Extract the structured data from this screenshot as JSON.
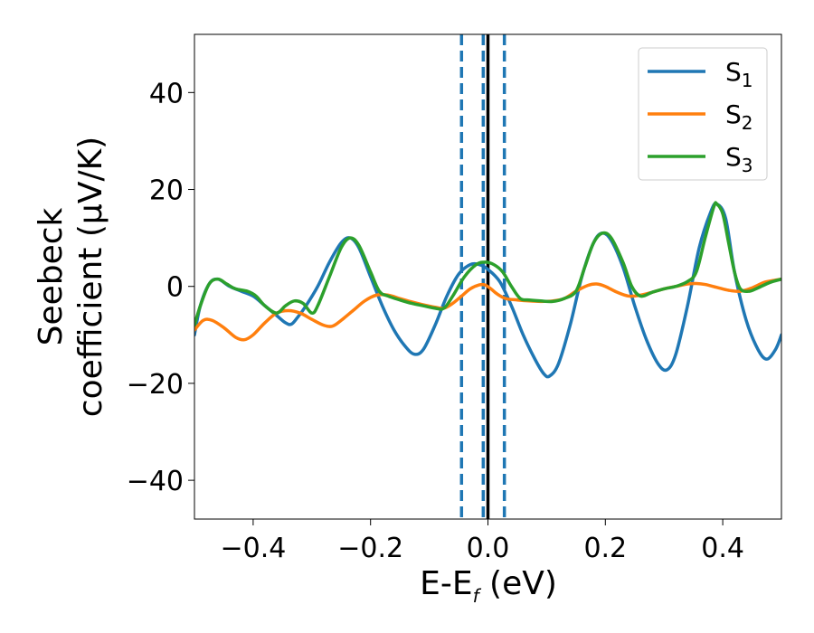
{
  "chart_data": {
    "type": "line",
    "title": "",
    "xlabel": "E-E_f (eV)",
    "xlabel_parts": {
      "main": "E-E",
      "subscript": "f",
      "tail": " (eV)"
    },
    "ylabel_line1": "Seebeck",
    "ylabel_line2": "coefficient  (μV/K)",
    "xlim": [
      -0.5,
      0.5
    ],
    "ylim": [
      -48,
      52
    ],
    "xticks": [
      -0.4,
      -0.2,
      0.0,
      0.2,
      0.4
    ],
    "xtick_labels": [
      "−0.4",
      "−0.2",
      "0.0",
      "0.2",
      "0.4"
    ],
    "yticks": [
      -40,
      -20,
      0,
      20,
      40
    ],
    "ytick_labels": [
      "−40",
      "−20",
      "0",
      "20",
      "40"
    ],
    "grid": false,
    "legend_position": "top-right",
    "vertical_lines": [
      {
        "x": -0.045,
        "style": "dashed",
        "color": "#1f77b4"
      },
      {
        "x": -0.008,
        "style": "dashed",
        "color": "#1f77b4"
      },
      {
        "x": 0.028,
        "style": "dashed",
        "color": "#1f77b4"
      },
      {
        "x": 0.0,
        "style": "solid",
        "color": "#000000"
      }
    ],
    "series": [
      {
        "name": "S",
        "subscript": "1",
        "color": "#1f77b4",
        "points": [
          [
            -0.5,
            -10
          ],
          [
            -0.49,
            -4
          ],
          [
            -0.475,
            0.5
          ],
          [
            -0.46,
            1.5
          ],
          [
            -0.44,
            0
          ],
          [
            -0.42,
            -1
          ],
          [
            -0.4,
            -2
          ],
          [
            -0.38,
            -4
          ],
          [
            -0.36,
            -6
          ],
          [
            -0.345,
            -7.5
          ],
          [
            -0.335,
            -7.8
          ],
          [
            -0.325,
            -6.5
          ],
          [
            -0.31,
            -4
          ],
          [
            -0.29,
            0
          ],
          [
            -0.27,
            5
          ],
          [
            -0.25,
            9
          ],
          [
            -0.235,
            10
          ],
          [
            -0.22,
            8
          ],
          [
            -0.2,
            2
          ],
          [
            -0.18,
            -4
          ],
          [
            -0.16,
            -9
          ],
          [
            -0.14,
            -12.5
          ],
          [
            -0.125,
            -14
          ],
          [
            -0.11,
            -13
          ],
          [
            -0.09,
            -8
          ],
          [
            -0.07,
            -2
          ],
          [
            -0.05,
            2.5
          ],
          [
            -0.03,
            4.5
          ],
          [
            -0.015,
            4.5
          ],
          [
            0.0,
            3.5
          ],
          [
            0.02,
            1
          ],
          [
            0.04,
            -4
          ],
          [
            0.06,
            -10
          ],
          [
            0.08,
            -15
          ],
          [
            0.095,
            -18
          ],
          [
            0.105,
            -18.5
          ],
          [
            0.12,
            -16
          ],
          [
            0.14,
            -8
          ],
          [
            0.16,
            2
          ],
          [
            0.18,
            9
          ],
          [
            0.195,
            11
          ],
          [
            0.21,
            9.5
          ],
          [
            0.23,
            4
          ],
          [
            0.25,
            -4
          ],
          [
            0.27,
            -11
          ],
          [
            0.29,
            -16
          ],
          [
            0.305,
            -17.2
          ],
          [
            0.32,
            -14
          ],
          [
            0.34,
            -4
          ],
          [
            0.36,
            8
          ],
          [
            0.38,
            15.5
          ],
          [
            0.39,
            17
          ],
          [
            0.405,
            14
          ],
          [
            0.42,
            3
          ],
          [
            0.44,
            -7
          ],
          [
            0.46,
            -13
          ],
          [
            0.475,
            -15
          ],
          [
            0.49,
            -13
          ],
          [
            0.5,
            -10
          ]
        ]
      },
      {
        "name": "S",
        "subscript": "2",
        "color": "#ff7f0e",
        "points": [
          [
            -0.5,
            -9
          ],
          [
            -0.485,
            -7
          ],
          [
            -0.47,
            -7
          ],
          [
            -0.45,
            -8.5
          ],
          [
            -0.43,
            -10.5
          ],
          [
            -0.415,
            -11
          ],
          [
            -0.4,
            -10
          ],
          [
            -0.38,
            -7.5
          ],
          [
            -0.36,
            -5.5
          ],
          [
            -0.34,
            -5
          ],
          [
            -0.32,
            -5.5
          ],
          [
            -0.3,
            -6.8
          ],
          [
            -0.28,
            -8
          ],
          [
            -0.265,
            -8.2
          ],
          [
            -0.25,
            -7
          ],
          [
            -0.23,
            -5
          ],
          [
            -0.21,
            -3
          ],
          [
            -0.19,
            -1.8
          ],
          [
            -0.17,
            -1.8
          ],
          [
            -0.15,
            -2.5
          ],
          [
            -0.13,
            -3.2
          ],
          [
            -0.11,
            -3.8
          ],
          [
            -0.09,
            -4.3
          ],
          [
            -0.075,
            -4.5
          ],
          [
            -0.06,
            -3.5
          ],
          [
            -0.045,
            -2
          ],
          [
            -0.03,
            -0.5
          ],
          [
            -0.015,
            0.3
          ],
          [
            -0.005,
            0.3
          ],
          [
            0.005,
            -0.5
          ],
          [
            0.015,
            -1.5
          ],
          [
            0.03,
            -2.5
          ],
          [
            0.05,
            -2.8
          ],
          [
            0.07,
            -3
          ],
          [
            0.09,
            -3.1
          ],
          [
            0.11,
            -3
          ],
          [
            0.13,
            -2.5
          ],
          [
            0.15,
            -1
          ],
          [
            0.17,
            0.2
          ],
          [
            0.185,
            0.5
          ],
          [
            0.2,
            0
          ],
          [
            0.22,
            -1.2
          ],
          [
            0.24,
            -2
          ],
          [
            0.26,
            -1.8
          ],
          [
            0.28,
            -1.2
          ],
          [
            0.3,
            -0.5
          ],
          [
            0.32,
            0
          ],
          [
            0.34,
            0.5
          ],
          [
            0.355,
            0.6
          ],
          [
            0.37,
            0.4
          ],
          [
            0.39,
            -0.2
          ],
          [
            0.41,
            -0.8
          ],
          [
            0.43,
            -1
          ],
          [
            0.45,
            -0.3
          ],
          [
            0.47,
            0.8
          ],
          [
            0.49,
            1.3
          ],
          [
            0.5,
            1.5
          ]
        ]
      },
      {
        "name": "S",
        "subscript": "3",
        "color": "#2ca02c",
        "points": [
          [
            -0.5,
            -8
          ],
          [
            -0.49,
            -4
          ],
          [
            -0.475,
            0.5
          ],
          [
            -0.46,
            1.5
          ],
          [
            -0.445,
            0.5
          ],
          [
            -0.43,
            -0.5
          ],
          [
            -0.41,
            -1
          ],
          [
            -0.395,
            -2
          ],
          [
            -0.38,
            -4
          ],
          [
            -0.36,
            -5.5
          ],
          [
            -0.345,
            -4
          ],
          [
            -0.33,
            -3
          ],
          [
            -0.315,
            -3.5
          ],
          [
            -0.3,
            -5.5
          ],
          [
            -0.29,
            -4
          ],
          [
            -0.27,
            2
          ],
          [
            -0.25,
            8
          ],
          [
            -0.235,
            10
          ],
          [
            -0.22,
            8.5
          ],
          [
            -0.2,
            3
          ],
          [
            -0.185,
            -1
          ],
          [
            -0.17,
            -2
          ],
          [
            -0.15,
            -2.8
          ],
          [
            -0.13,
            -3.5
          ],
          [
            -0.11,
            -4
          ],
          [
            -0.09,
            -4.5
          ],
          [
            -0.075,
            -4.5
          ],
          [
            -0.06,
            -2
          ],
          [
            -0.04,
            2
          ],
          [
            -0.02,
            4.5
          ],
          [
            -0.005,
            5
          ],
          [
            0.01,
            4.5
          ],
          [
            0.025,
            3
          ],
          [
            0.04,
            0
          ],
          [
            0.055,
            -2.5
          ],
          [
            0.07,
            -2.8
          ],
          [
            0.09,
            -3
          ],
          [
            0.11,
            -3.1
          ],
          [
            0.13,
            -2.5
          ],
          [
            0.15,
            -1
          ],
          [
            0.165,
            4
          ],
          [
            0.18,
            9
          ],
          [
            0.195,
            11
          ],
          [
            0.21,
            10
          ],
          [
            0.23,
            5
          ],
          [
            0.245,
            0
          ],
          [
            0.26,
            -2
          ],
          [
            0.28,
            -1.2
          ],
          [
            0.3,
            -0.5
          ],
          [
            0.32,
            0
          ],
          [
            0.34,
            1
          ],
          [
            0.355,
            3
          ],
          [
            0.37,
            10
          ],
          [
            0.385,
            16.5
          ],
          [
            0.39,
            17
          ],
          [
            0.4,
            15
          ],
          [
            0.41,
            9
          ],
          [
            0.42,
            3
          ],
          [
            0.43,
            -0.5
          ],
          [
            0.445,
            -1
          ],
          [
            0.46,
            -0.3
          ],
          [
            0.48,
            0.8
          ],
          [
            0.5,
            1.5
          ]
        ]
      }
    ]
  }
}
